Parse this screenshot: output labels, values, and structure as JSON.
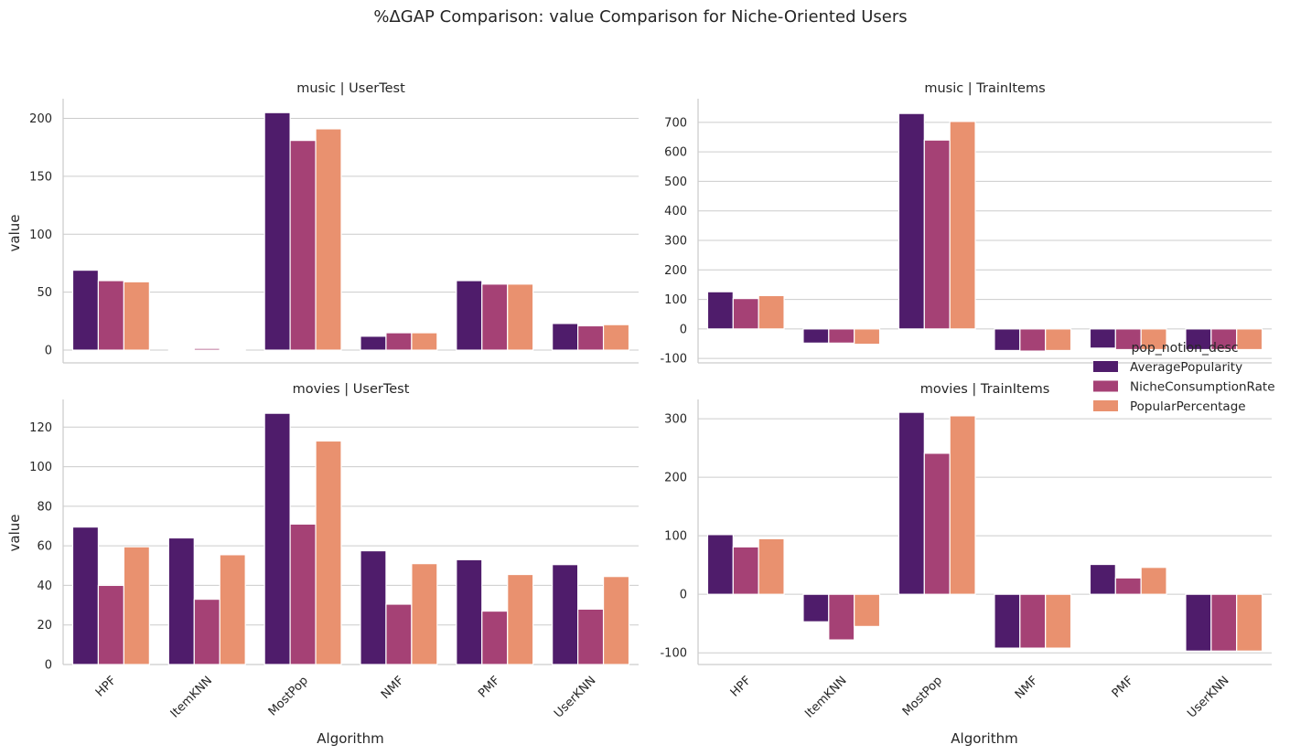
{
  "chart_data": {
    "type": "bar",
    "title": "%ΔGAP Comparison: value Comparison for Niche-Oriented Users",
    "xlabel": "Algorithm",
    "ylabel": "value",
    "categories": [
      "HPF",
      "ItemKNN",
      "MostPop",
      "NMF",
      "PMF",
      "UserKNN"
    ],
    "legend": {
      "title": "pop_notion_desc",
      "placement": "right",
      "entries": [
        "AveragePopularity",
        "NicheConsumptionRate",
        "PopularPercentage"
      ]
    },
    "colors": [
      "#4f1c6b",
      "#a54175",
      "#e9916f"
    ],
    "grid": true,
    "panels": [
      {
        "title": "music | UserTest",
        "ylim": [
          -11,
          217
        ],
        "yticks": [
          0,
          50,
          100,
          150,
          200
        ],
        "series": [
          {
            "name": "AveragePopularity",
            "values": [
              69,
              0.5,
              205,
              12,
              60,
              23
            ]
          },
          {
            "name": "NicheConsumptionRate",
            "values": [
              60,
              1.5,
              181,
              15,
              57,
              21
            ]
          },
          {
            "name": "PopularPercentage",
            "values": [
              59,
              0.5,
              191,
              15,
              57,
              22
            ]
          }
        ]
      },
      {
        "title": "music | TrainItems",
        "ylim": [
          -115,
          780
        ],
        "yticks": [
          -100,
          0,
          100,
          200,
          300,
          400,
          500,
          600,
          700
        ],
        "series": [
          {
            "name": "AveragePopularity",
            "values": [
              126,
              -48,
              730,
              -73,
              -65,
              -70
            ]
          },
          {
            "name": "NicheConsumptionRate",
            "values": [
              103,
              -48,
              640,
              -75,
              -70,
              -70
            ]
          },
          {
            "name": "PopularPercentage",
            "values": [
              113,
              -52,
              703,
              -73,
              -70,
              -70
            ]
          }
        ]
      },
      {
        "title": "movies | UserTest",
        "ylim": [
          0,
          134
        ],
        "yticks": [
          0,
          20,
          40,
          60,
          80,
          100,
          120
        ],
        "series": [
          {
            "name": "AveragePopularity",
            "values": [
              69.5,
              64,
              127,
              57.5,
              53,
              50.5
            ]
          },
          {
            "name": "NicheConsumptionRate",
            "values": [
              40,
              33,
              71,
              30.5,
              27,
              28
            ]
          },
          {
            "name": "PopularPercentage",
            "values": [
              59.5,
              55.5,
              113,
              51,
              45.5,
              44.5
            ]
          }
        ]
      },
      {
        "title": "movies | TrainItems",
        "ylim": [
          -120,
          333
        ],
        "yticks": [
          -100,
          0,
          100,
          200,
          300
        ],
        "series": [
          {
            "name": "AveragePopularity",
            "values": [
              102,
              -47,
              311,
              -92,
              51,
              -97
            ]
          },
          {
            "name": "NicheConsumptionRate",
            "values": [
              81,
              -78,
              241,
              -92,
              28,
              -97
            ]
          },
          {
            "name": "PopularPercentage",
            "values": [
              95,
              -55,
              305,
              -92,
              46,
              -97
            ]
          }
        ]
      }
    ]
  }
}
